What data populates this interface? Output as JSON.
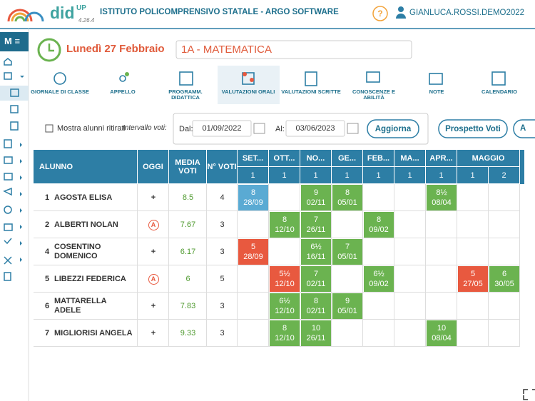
{
  "header": {
    "app_name": "did",
    "app_sup": "UP",
    "version": "4.26.4",
    "school": "ISTITUTO POLICOMPRENSIVO STATALE - ARGO SOFTWARE",
    "help": "?",
    "user": "GIANLUCA.ROSSI.DEMO2022"
  },
  "sidebar": {
    "menu": "M"
  },
  "day": {
    "date": "Lunedì 27 Febbraio",
    "class": "1A - MATEMATICA"
  },
  "toolbar": [
    "GIORNALE DI CLASSE",
    "APPELLO",
    "PROGRAMM. DIDATTICA",
    "VALUTAZIONI ORALI",
    "VALUTAZIONI SCRITTE",
    "CONOSCENZE E ABILITÀ",
    "NOTE",
    "CALENDARIO"
  ],
  "filters": {
    "show_withdrawn": "Mostra alunni ritirati",
    "interval": "Intervallo voti:",
    "from_label": "Dal:",
    "from": "01/09/2022",
    "to_label": "Al:",
    "to": "03/06/2023",
    "refresh": "Aggiorna",
    "summary": "Prospetto Voti",
    "more": "A"
  },
  "table": {
    "headers": [
      "ALUNNO",
      "OGGI",
      "MEDIA VOTI",
      "N° VOTI"
    ],
    "months": [
      {
        "label": "SET...",
        "cols": [
          "1"
        ]
      },
      {
        "label": "OTT...",
        "cols": [
          "1"
        ]
      },
      {
        "label": "NO...",
        "cols": [
          "1"
        ]
      },
      {
        "label": "GE...",
        "cols": [
          "1"
        ]
      },
      {
        "label": "FEB...",
        "cols": [
          "1"
        ]
      },
      {
        "label": "MA...",
        "cols": [
          "1"
        ]
      },
      {
        "label": "APR...",
        "cols": [
          "1"
        ]
      },
      {
        "label": "MAGGIO",
        "cols": [
          "1",
          "2"
        ]
      }
    ],
    "rows": [
      {
        "num": "1",
        "name": "AGOSTA ELISA",
        "oggi": "+",
        "media": "8.5",
        "count": "4",
        "grades": [
          {
            "grade": "8",
            "date": "28/09",
            "color": "#5aaad3"
          },
          null,
          {
            "grade": "9",
            "date": "02/11",
            "color": "#6bb350"
          },
          {
            "grade": "8",
            "date": "05/01",
            "color": "#6bb350"
          },
          null,
          null,
          {
            "grade": "8½",
            "date": "08/04",
            "color": "#6bb350"
          },
          null,
          null
        ]
      },
      {
        "num": "2",
        "name": "ALBERTI NOLAN",
        "oggi": "A",
        "media": "7.67",
        "count": "3",
        "grades": [
          null,
          {
            "grade": "8",
            "date": "12/10",
            "color": "#6bb350"
          },
          {
            "grade": "7",
            "date": "26/11",
            "color": "#6bb350"
          },
          null,
          {
            "grade": "8",
            "date": "09/02",
            "color": "#6bb350"
          },
          null,
          null,
          null,
          null
        ]
      },
      {
        "num": "4",
        "name": "COSENTINO DOMENICO",
        "oggi": "+",
        "media": "6.17",
        "count": "3",
        "grades": [
          {
            "grade": "5",
            "date": "28/09",
            "color": "#e8593f"
          },
          null,
          {
            "grade": "6½",
            "date": "16/11",
            "color": "#6bb350"
          },
          {
            "grade": "7",
            "date": "05/01",
            "color": "#6bb350"
          },
          null,
          null,
          null,
          null,
          null
        ]
      },
      {
        "num": "5",
        "name": "LIBEZZI FEDERICA",
        "oggi": "A",
        "media": "6",
        "count": "5",
        "grades": [
          null,
          {
            "grade": "5½",
            "date": "12/10",
            "color": "#e8593f"
          },
          {
            "grade": "7",
            "date": "02/11",
            "color": "#6bb350"
          },
          null,
          {
            "grade": "6½",
            "date": "09/02",
            "color": "#6bb350"
          },
          null,
          null,
          {
            "grade": "5",
            "date": "27/05",
            "color": "#e8593f"
          },
          {
            "grade": "6",
            "date": "30/05",
            "color": "#6bb350"
          }
        ]
      },
      {
        "num": "6",
        "name": "MATTARELLA ADELE",
        "oggi": "+",
        "media": "7.83",
        "count": "3",
        "grades": [
          null,
          {
            "grade": "6½",
            "date": "12/10",
            "color": "#6bb350"
          },
          {
            "grade": "8",
            "date": "02/11",
            "color": "#6bb350"
          },
          {
            "grade": "9",
            "date": "05/01",
            "color": "#6bb350"
          },
          null,
          null,
          null,
          null,
          null
        ]
      },
      {
        "num": "7",
        "name": "MIGLIORISI ANGELA",
        "oggi": "+",
        "media": "9.33",
        "count": "3",
        "grades": [
          null,
          {
            "grade": "8",
            "date": "12/10",
            "color": "#6bb350"
          },
          {
            "grade": "10",
            "date": "26/11",
            "color": "#6bb350"
          },
          null,
          null,
          null,
          {
            "grade": "10",
            "date": "08/04",
            "color": "#6bb350"
          },
          null,
          null
        ]
      }
    ]
  }
}
